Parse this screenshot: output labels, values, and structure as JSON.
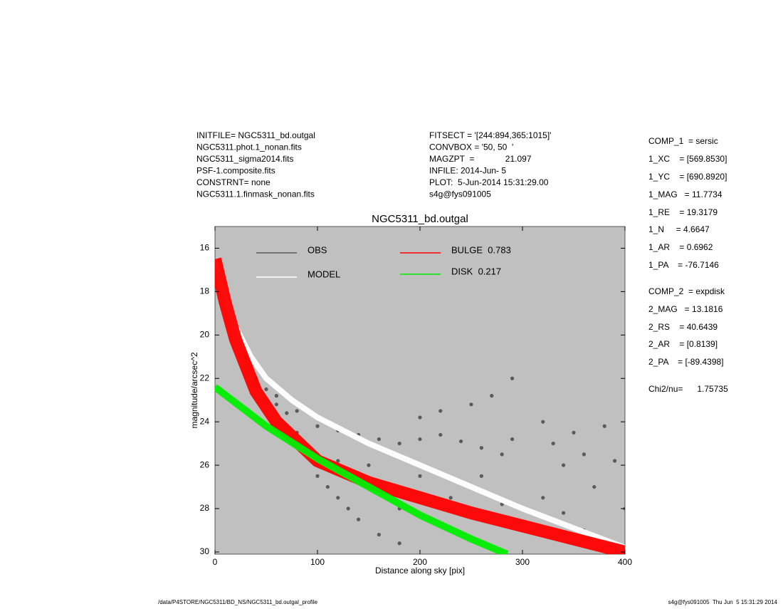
{
  "header": {
    "left": [
      "INITFILE= NGC5311_bd.outgal",
      "NGC5311.phot.1_nonan.fits",
      "NGC5311_sigma2014.fits",
      "PSF-1.composite.fits",
      "CONSTRNT= none",
      "NGC5311.1.finmask_nonan.fits"
    ],
    "middle": [
      "FITSECT = '[244:894,365:1015]'",
      "CONVBOX = '50, 50  '",
      "MAGZPT  =             21.097",
      "INFILE: 2014-Jun- 5",
      "PLOT:  5-Jun-2014 15:31:29.00",
      "s4g@fys091005"
    ]
  },
  "params": [
    "COMP_1  = sersic",
    "1_XC    = [569.8530]",
    "1_YC    = [690.8920]",
    "1_MAG   = 11.7734",
    "1_RE    = 19.3179",
    "1_N     = 4.6647",
    "1_AR    = 0.6962",
    "1_PA    = -76.7146",
    "COMP_2  = expdisk",
    "2_MAG   = 13.1816",
    "2_RS    = 40.6439",
    "2_AR    = [0.8139]",
    "2_PA    = [-89.4398]",
    "Chi2/nu=      1.75735"
  ],
  "footer": {
    "left": "/data/P4STORE/NGC5311/BD_NS/NGC5311_bd.outgal_profile",
    "right": "s4g@fys091005  Thu Jun  5 15:31:29 2014"
  },
  "chart_data": {
    "type": "line",
    "title": "NGC5311_bd.outgal",
    "x_label": "Distance along sky [pix]",
    "y_label": "magnitude/arcsec^2",
    "xlim": [
      0,
      400
    ],
    "ylim": [
      15,
      30.1
    ],
    "y_inverted": true,
    "xticks": [
      0,
      100,
      200,
      300,
      400
    ],
    "yticks": [
      16,
      18,
      20,
      22,
      24,
      26,
      28,
      30
    ],
    "background": "#c0c0c0",
    "series": [
      {
        "name": "OBS",
        "type": "scatter",
        "color": "#5a5a5a",
        "x": [
          5,
          10,
          20,
          30,
          40,
          50,
          60,
          70,
          80,
          90,
          100,
          110,
          120,
          130,
          140,
          160,
          180,
          60,
          80,
          100,
          120,
          140,
          160,
          180,
          200,
          220,
          240,
          260,
          280,
          290,
          200,
          220,
          250,
          270,
          290,
          320,
          330,
          340,
          350,
          360,
          370,
          380,
          390,
          400,
          320,
          340,
          200,
          230,
          150,
          120,
          180,
          260,
          280,
          360
        ],
        "values": [
          17,
          18.5,
          19.8,
          21,
          22,
          22.5,
          23.2,
          23.6,
          24.5,
          25.5,
          26.5,
          27,
          27.5,
          28,
          28.5,
          29.2,
          29.6,
          22.8,
          23.5,
          24.2,
          24.4,
          24.6,
          24.8,
          25,
          24.8,
          24.6,
          24.9,
          25.2,
          25.5,
          24.8,
          23.8,
          23.5,
          23.2,
          22.8,
          22,
          24,
          25,
          26,
          24.5,
          25.5,
          27,
          24.2,
          25.8,
          28,
          27.5,
          28.2,
          26.5,
          27.5,
          26,
          25.8,
          28,
          26.5,
          27.8,
          29
        ]
      },
      {
        "name": "MODEL",
        "type": "line",
        "color": "#ffffff",
        "x": [
          0,
          10,
          20,
          35,
          50,
          75,
          100,
          150,
          200,
          250,
          300,
          350,
          400
        ],
        "values": [
          16.5,
          18.3,
          19.6,
          21,
          22,
          23,
          23.8,
          25,
          26,
          27,
          28,
          28.9,
          29.8
        ]
      },
      {
        "name": "BULGE  0.783",
        "type": "line",
        "color": "#ff0000",
        "x": [
          0,
          10,
          20,
          40,
          60,
          100,
          150,
          200,
          250,
          300,
          350,
          400
        ],
        "values": [
          16.5,
          18.5,
          20.2,
          22.6,
          24,
          25.8,
          26.8,
          27.5,
          28.2,
          28.8,
          29.4,
          30
        ]
      },
      {
        "name": "DISK  0.217",
        "type": "line",
        "color": "#00ee00",
        "x": [
          0,
          50,
          100,
          150,
          200,
          250,
          285
        ],
        "values": [
          22.4,
          24.2,
          25.7,
          27,
          28.3,
          29.4,
          30.1
        ]
      }
    ]
  }
}
